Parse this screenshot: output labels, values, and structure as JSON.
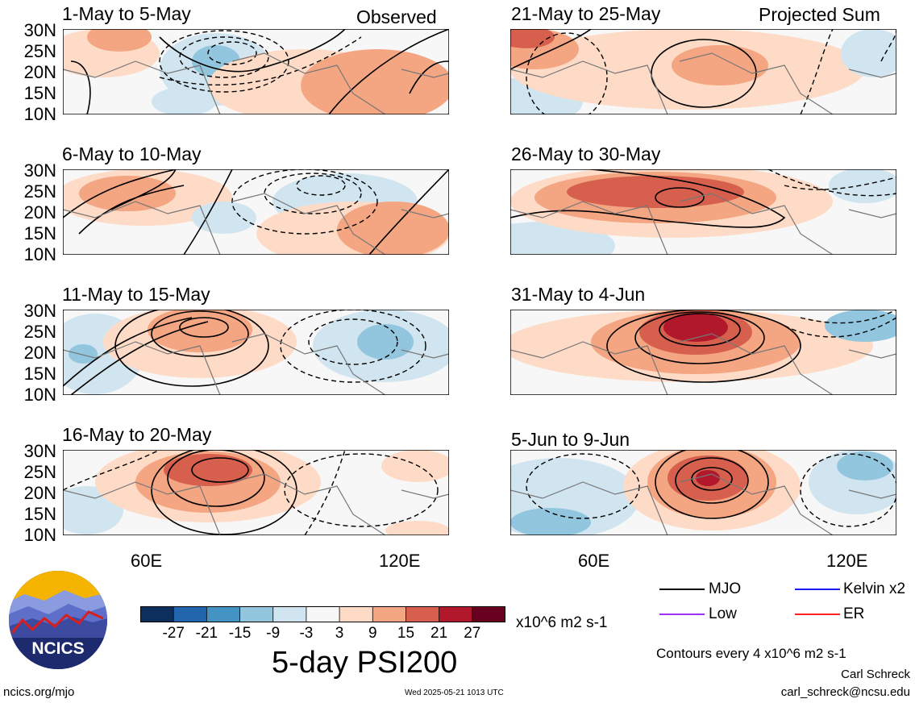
{
  "header": {
    "left_label": "Observed",
    "right_label": "Projected Sum"
  },
  "panels_left": [
    {
      "title": "1-May to 5-May"
    },
    {
      "title": "6-May to 10-May"
    },
    {
      "title": "11-May to 15-May"
    },
    {
      "title": "16-May to 20-May"
    }
  ],
  "panels_right": [
    {
      "title": "21-May to 25-May"
    },
    {
      "title": "26-May to 30-May"
    },
    {
      "title": "31-May to 4-Jun"
    },
    {
      "title": "5-Jun to 9-Jun"
    }
  ],
  "lat_labels": [
    "30N",
    "25N",
    "20N",
    "15N",
    "10N"
  ],
  "lon_labels": [
    "60E",
    "120E"
  ],
  "colorbar": {
    "tick_labels": [
      "-27",
      "-21",
      "-15",
      "-9",
      "-3",
      "3",
      "9",
      "15",
      "21",
      "27"
    ],
    "units": "x10^6 m2 s-1",
    "colors": [
      "#0d2f5e",
      "#2166ac",
      "#4393c3",
      "#92c5de",
      "#d1e5f0",
      "#f7f7f7",
      "#fddbc7",
      "#f4a582",
      "#d6604d",
      "#b2182b",
      "#67001f"
    ]
  },
  "title": "5-day PSI200",
  "legend": {
    "items": [
      {
        "label": "MJO",
        "color": "#000000"
      },
      {
        "label": "Kelvin x2",
        "color": "#1a1aff"
      },
      {
        "label": "Low",
        "color": "#9b30ff"
      },
      {
        "label": "ER",
        "color": "#ff2020"
      }
    ],
    "contour_note": "Contours every 4 x10^6 m2 s-1"
  },
  "footer": {
    "logo_text": "NCICS",
    "url": "ncics.org/mjo",
    "timestamp": "Wed 2025-05-21 1013 UTC",
    "author": "Carl Schreck",
    "email": "carl_schreck@ncsu.edu"
  }
}
